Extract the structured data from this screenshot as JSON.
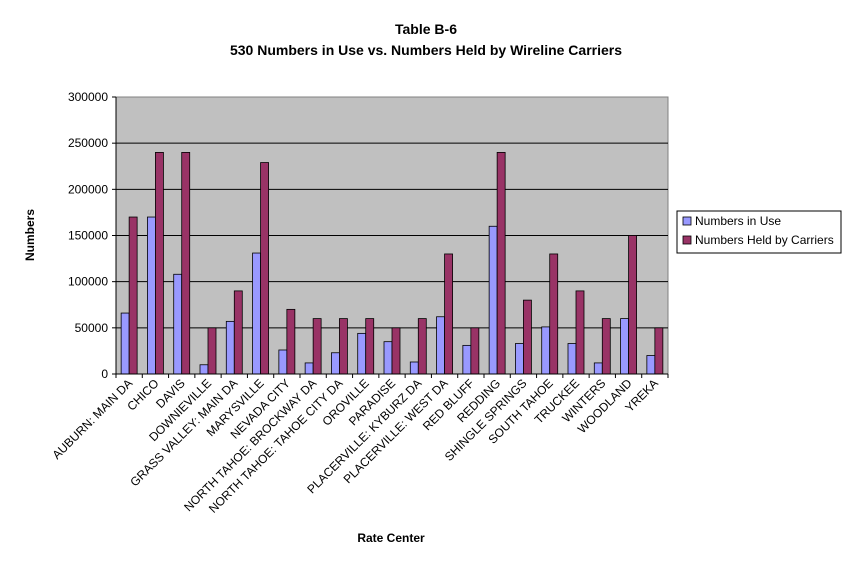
{
  "chart_data": {
    "type": "bar",
    "title": "Table B-6",
    "subtitle": "530 Numbers in Use vs. Numbers Held by Wireline Carriers",
    "xlabel": "Rate Center",
    "ylabel": "Numbers",
    "ylim": [
      0,
      300000
    ],
    "yticks": [
      0,
      50000,
      100000,
      150000,
      200000,
      250000,
      300000
    ],
    "grid": true,
    "legend_position": "right",
    "categories": [
      "AUBURN: MAIN DA",
      "CHICO",
      "DAVIS",
      "DOWNIEVILLE",
      "GRASS VALLEY: MAIN DA",
      "MARYSVILLE",
      "NEVADA CITY",
      "NORTH TAHOE: BROCKWAY DA",
      "NORTH TAHOE: TAHOE CITY DA",
      "OROVILLE",
      "PARADISE",
      "PLACERVILLE: KYBURZ DA",
      "PLACERVILLE: WEST DA",
      "RED BLUFF",
      "REDDING",
      "SHINGLE SPRINGS",
      "SOUTH TAHOE",
      "TRUCKEE",
      "WINTERS",
      "WOODLAND",
      "YREKA"
    ],
    "series": [
      {
        "name": "Numbers in Use",
        "color": "#9999ff",
        "values": [
          66000,
          170000,
          108000,
          10000,
          57000,
          131000,
          26000,
          12000,
          23000,
          44000,
          35000,
          13000,
          62000,
          31000,
          160000,
          33000,
          51000,
          33000,
          12000,
          60000,
          20000
        ]
      },
      {
        "name": "Numbers Held by Carriers",
        "color": "#993366",
        "values": [
          170000,
          240000,
          240000,
          50000,
          90000,
          229000,
          70000,
          60000,
          60000,
          60000,
          50000,
          60000,
          130000,
          50000,
          240000,
          80000,
          130000,
          90000,
          60000,
          150000,
          50000
        ]
      }
    ]
  }
}
